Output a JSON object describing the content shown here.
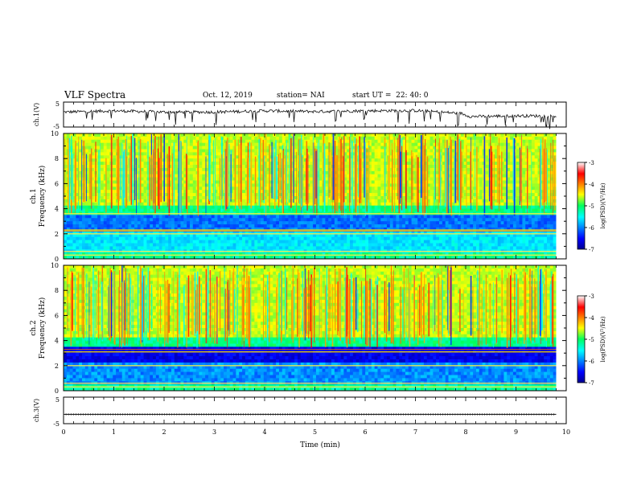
{
  "header": {
    "title": "VLF Spectra",
    "date": "Oct. 12, 2019",
    "station": "station= NAI",
    "start": "start UT =  22: 40: 0"
  },
  "colors": {
    "ink": "#000000",
    "ch1_line": "#111111",
    "ch3_line": "#222222"
  },
  "chart_data": [
    {
      "type": "line",
      "panel": "ch1",
      "ylabel": "ch.1(V)",
      "ylim": [
        -5,
        5
      ],
      "yticks": [
        "5",
        "-5"
      ],
      "xlim": [
        0,
        10
      ],
      "description_of_shape": "noisy waveform near +1.5 V with frequent negative spikes",
      "series": [
        {
          "x": [
            0,
            1,
            2,
            3,
            4,
            5,
            6,
            7,
            7.9,
            8.1,
            9,
            9.8
          ],
          "values": [
            1.0,
            1.5,
            1.0,
            1.0,
            1.5,
            1.2,
            1.5,
            1.6,
            0.5,
            -0.8,
            -0.5,
            -0.6
          ]
        }
      ]
    },
    {
      "type": "heatmap",
      "panel": "ch1-spectrogram",
      "ylabel": "ch.1\nFrequency (kHz)",
      "yticks": [
        "0",
        "2",
        "4",
        "6",
        "8",
        "10"
      ],
      "ylim": [
        0,
        10
      ],
      "xlim": [
        0,
        10
      ],
      "colorbar": {
        "label": "log(PSD)(V²/Hz)",
        "ticks": [
          "-3",
          "-4",
          "-5",
          "-6",
          "-7"
        ],
        "range": [
          -7,
          -3
        ]
      }
    },
    {
      "type": "heatmap",
      "panel": "ch2-spectrogram",
      "ylabel": "ch.2\nFrequency (kHz)",
      "yticks": [
        "0",
        "2",
        "4",
        "6",
        "8",
        "10"
      ],
      "ylim": [
        0,
        10
      ],
      "xlim": [
        0,
        10
      ],
      "colorbar": {
        "label": "log(PSD)(V²/Hz)",
        "ticks": [
          "-3",
          "-4",
          "-5",
          "-6",
          "-7"
        ],
        "range": [
          -7,
          -3
        ]
      }
    },
    {
      "type": "line",
      "panel": "ch3",
      "ylabel": "ch.3(V)",
      "ylim": [
        -5,
        5
      ],
      "yticks": [
        "5",
        "-5"
      ],
      "xlim": [
        0,
        10
      ],
      "xlabel": "Time (min)",
      "xticks": [
        "0",
        "1",
        "2",
        "3",
        "4",
        "5",
        "6",
        "7",
        "8",
        "9",
        "10"
      ],
      "series": [
        {
          "x": [
            0,
            9.8
          ],
          "values": [
            -1.5,
            -1.5
          ]
        }
      ]
    }
  ]
}
